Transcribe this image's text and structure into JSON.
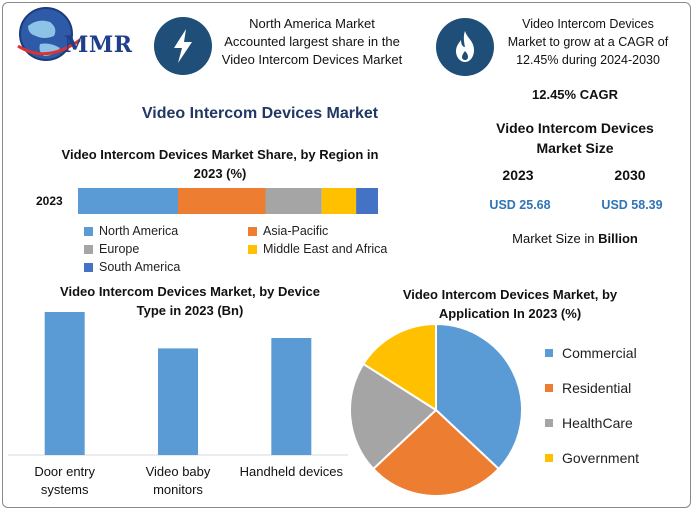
{
  "header": {
    "logo_text": "MMR",
    "box1_text": [
      "North America Market",
      "Accounted largest share in the",
      "Video Intercom Devices Market"
    ],
    "box2_text": [
      "Video Intercom Devices",
      "Market to grow at a CAGR of",
      "12.45% during 2024-2030"
    ],
    "icon1": "lightning-bolt-icon",
    "icon2": "flame-icon"
  },
  "main_title": "Video Intercom Devices Market",
  "right_panel": {
    "cagr": "12.45% CAGR",
    "size_title_1": "Video Intercom Devices",
    "size_title_2": "Market Size",
    "year_a": "2023",
    "year_b": "2030",
    "value_a": "USD 25.68",
    "value_b": "USD 58.39",
    "unit_prefix": "Market Size in ",
    "unit_bold": "Billion"
  },
  "colors": {
    "blue": "#5b9bd5",
    "orange": "#ed7d31",
    "gray": "#a5a5a5",
    "yellow": "#ffc000",
    "darkblue": "#4472c4",
    "icon_bg": "#1f4e79",
    "title": "#1f3864"
  },
  "chart_data": [
    {
      "type": "bar",
      "orientation": "horizontal-stacked",
      "title": "Video Intercom Devices Market Share, by Region in 2023 (%)",
      "categories": [
        "2023"
      ],
      "series": [
        {
          "name": "North America",
          "values": [
            32
          ]
        },
        {
          "name": "Asia-Pacific",
          "values": [
            28
          ]
        },
        {
          "name": "Europe",
          "values": [
            18
          ]
        },
        {
          "name": "Middle East and Africa",
          "values": [
            11
          ]
        },
        {
          "name": "South America",
          "values": [
            7
          ]
        }
      ],
      "xlim": [
        0,
        100
      ],
      "grid": false,
      "legend": "bottom"
    },
    {
      "type": "bar",
      "title": "Video Intercom Devices Market, by Device Type in 2023 (Bn)",
      "categories": [
        "Door entry systems",
        "Video baby monitors",
        "Handheld devices"
      ],
      "values": [
        11.0,
        8.2,
        9.0
      ],
      "ylim": [
        0,
        12
      ],
      "grid": false
    },
    {
      "type": "pie",
      "title": "Video Intercom Devices Market, by Application In 2023 (%)",
      "categories": [
        "Commercial",
        "Residential",
        "HealthCare",
        "Government"
      ],
      "values": [
        37,
        26,
        21,
        16
      ],
      "legend": "right"
    }
  ]
}
